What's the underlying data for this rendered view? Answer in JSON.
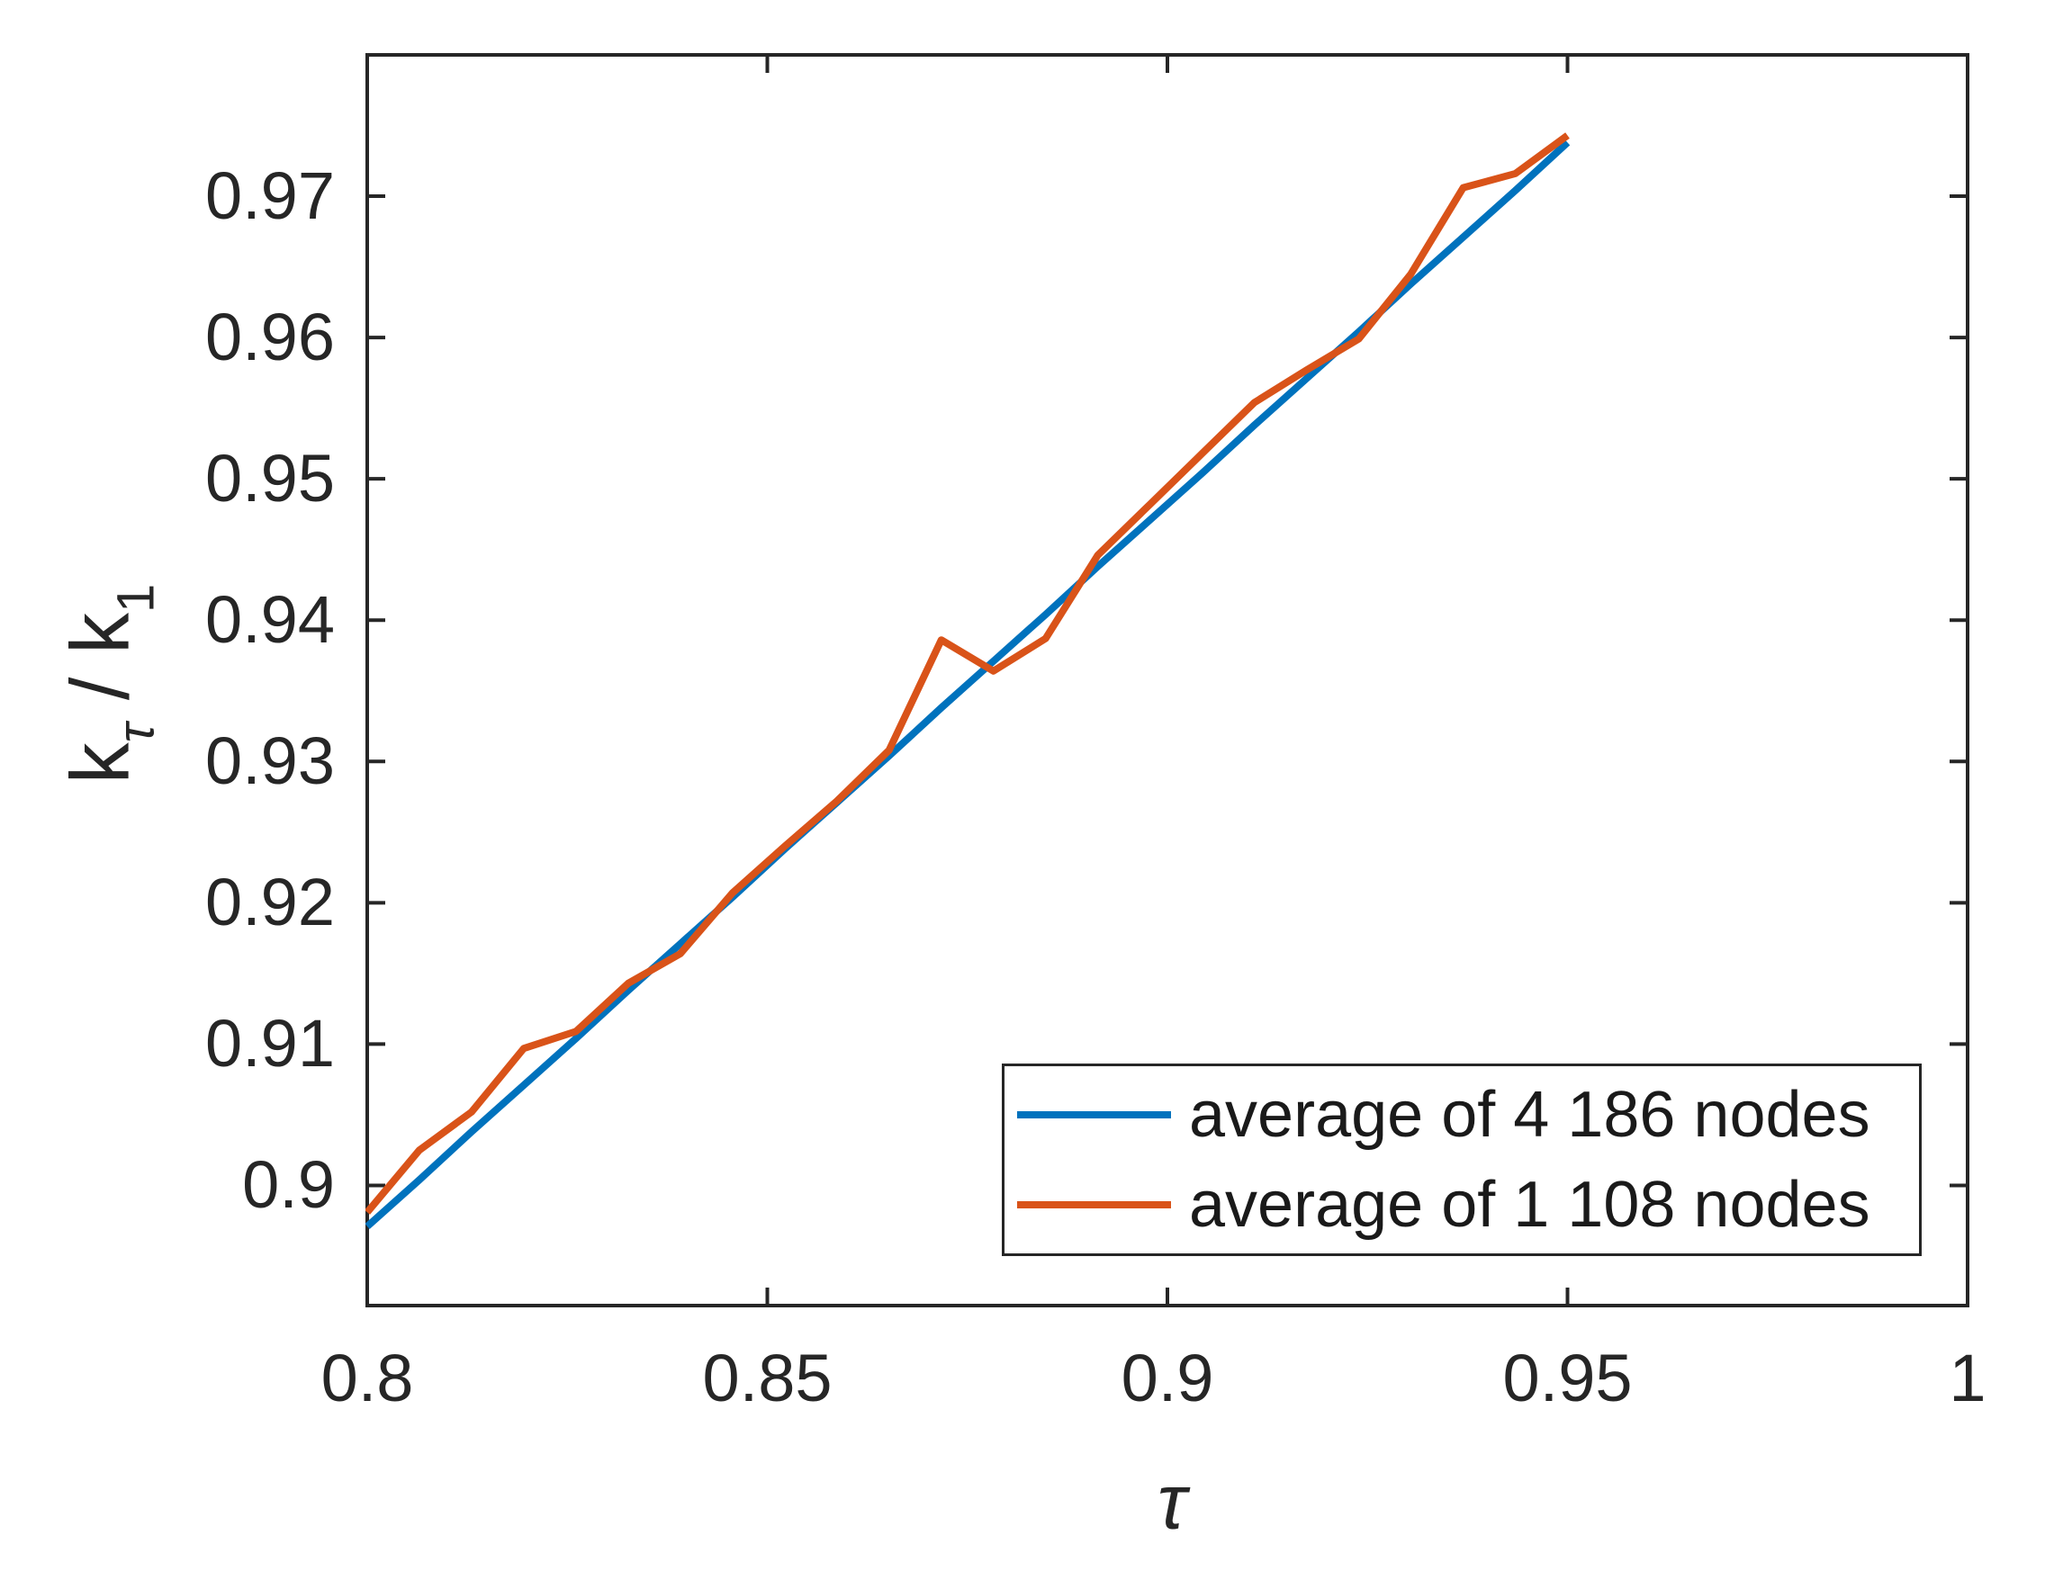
{
  "figure": {
    "background": "#ffffff",
    "axis_color": "#262626"
  },
  "ylabel": {
    "base1": "k",
    "sub1": "τ",
    "base2": " / k",
    "sub2": "1"
  },
  "xlabel": "τ",
  "chart_data": {
    "type": "line",
    "title": "",
    "xlabel": "τ",
    "ylabel": "k_τ / k_1",
    "xlim": [
      0.8,
      1.0
    ],
    "ylim": [
      0.8915,
      0.98
    ],
    "grid": false,
    "legend_position": "lower right",
    "xticks": {
      "values": [
        0.8,
        0.85,
        0.9,
        0.95,
        1.0
      ],
      "labels": [
        "0.8",
        "0.85",
        "0.9",
        "0.95",
        "1"
      ]
    },
    "yticks": {
      "values": [
        0.9,
        0.91,
        0.92,
        0.93,
        0.94,
        0.95,
        0.96,
        0.97
      ],
      "labels": [
        "0.9",
        "0.91",
        "0.92",
        "0.93",
        "0.94",
        "0.95",
        "0.96",
        "0.97"
      ]
    },
    "x": [
      0.8,
      0.80652,
      0.81304,
      0.81957,
      0.82609,
      0.83261,
      0.83913,
      0.84565,
      0.85217,
      0.8587,
      0.86522,
      0.87174,
      0.87826,
      0.88478,
      0.8913,
      0.89783,
      0.90435,
      0.91087,
      0.91739,
      0.92391,
      0.93043,
      0.93696,
      0.94348,
      0.95
    ],
    "series": [
      {
        "name": "average of 4 186 nodes",
        "color": "#0072BD",
        "line_width": 8,
        "values": [
          0.8971,
          0.9004,
          0.9038,
          0.9071,
          0.9104,
          0.9138,
          0.9171,
          0.9204,
          0.9238,
          0.9271,
          0.9304,
          0.9338,
          0.9371,
          0.9404,
          0.9438,
          0.9471,
          0.9504,
          0.9538,
          0.9571,
          0.9604,
          0.9638,
          0.9671,
          0.9704,
          0.9738
        ]
      },
      {
        "name": "average of 1 108 nodes",
        "color": "#D95319",
        "line_width": 8,
        "values": [
          0.8981,
          0.9025,
          0.9052,
          0.9097,
          0.9109,
          0.9143,
          0.9164,
          0.9207,
          0.924,
          0.9272,
          0.9308,
          0.9386,
          0.9364,
          0.9387,
          0.9446,
          0.9482,
          0.9518,
          0.9554,
          0.9577,
          0.9599,
          0.9645,
          0.9706,
          0.9716,
          0.9743
        ]
      }
    ]
  }
}
